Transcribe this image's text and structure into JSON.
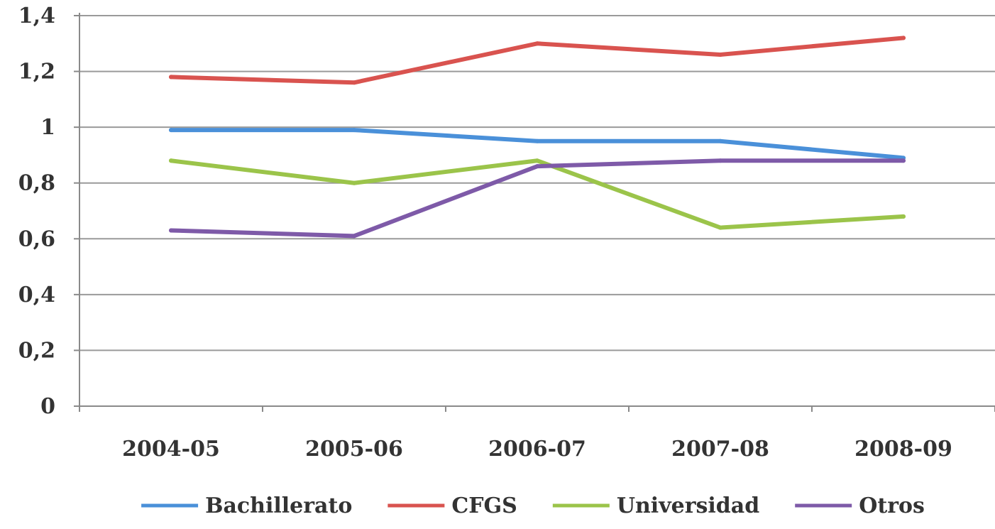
{
  "chart_data": {
    "type": "line",
    "categories": [
      "2004-05",
      "2005-06",
      "2006-07",
      "2007-08",
      "2008-09"
    ],
    "ylim": [
      0,
      1.4
    ],
    "yticks": [
      "0",
      "0,2",
      "0,4",
      "0,6",
      "0,8",
      "1",
      "1,2",
      "1,4"
    ],
    "ytick_values": [
      0,
      0.2,
      0.4,
      0.6,
      0.8,
      1.0,
      1.2,
      1.4
    ],
    "grid": true,
    "legend_position": "bottom",
    "series": [
      {
        "name": "Bachillerato",
        "color": "#4a90d9",
        "values": [
          0.99,
          0.99,
          0.95,
          0.95,
          0.89
        ]
      },
      {
        "name": "CFGS",
        "color": "#d9534f",
        "values": [
          1.18,
          1.16,
          1.3,
          1.26,
          1.32
        ]
      },
      {
        "name": "Universidad",
        "color": "#9bc44a",
        "values": [
          0.88,
          0.8,
          0.88,
          0.64,
          0.68
        ]
      },
      {
        "name": "Otros",
        "color": "#7e5aa8",
        "values": [
          0.63,
          0.61,
          0.86,
          0.88,
          0.88
        ]
      }
    ]
  }
}
